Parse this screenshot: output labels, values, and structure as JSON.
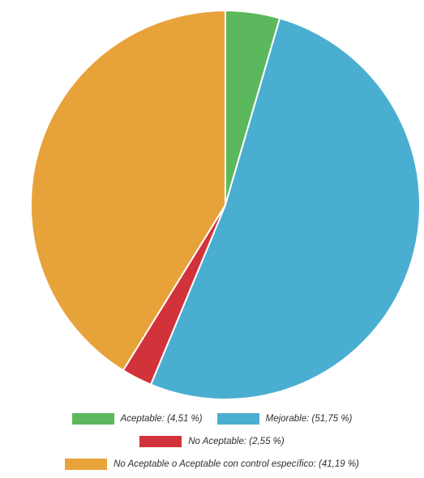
{
  "chart_data": {
    "type": "pie",
    "title": "",
    "slices": [
      {
        "label": "Aceptable",
        "value": 4.51,
        "color": "#5cb85c",
        "legend_text": "Aceptable: (4,51 %)"
      },
      {
        "label": "Mejorable",
        "value": 51.75,
        "color": "#4aaed1",
        "legend_text": "Mejorable: (51,75 %)"
      },
      {
        "label": "No Aceptable",
        "value": 2.55,
        "color": "#d2323a",
        "legend_text": "No Aceptable: (2,55 %)"
      },
      {
        "label": "No Aceptable o Aceptable con control específico",
        "value": 41.19,
        "color": "#e8a23a",
        "legend_text": "No Aceptable o Aceptable con control específico: (41,19 %)"
      }
    ],
    "start_angle": "top",
    "direction": "clockwise",
    "legend_position": "bottom"
  }
}
